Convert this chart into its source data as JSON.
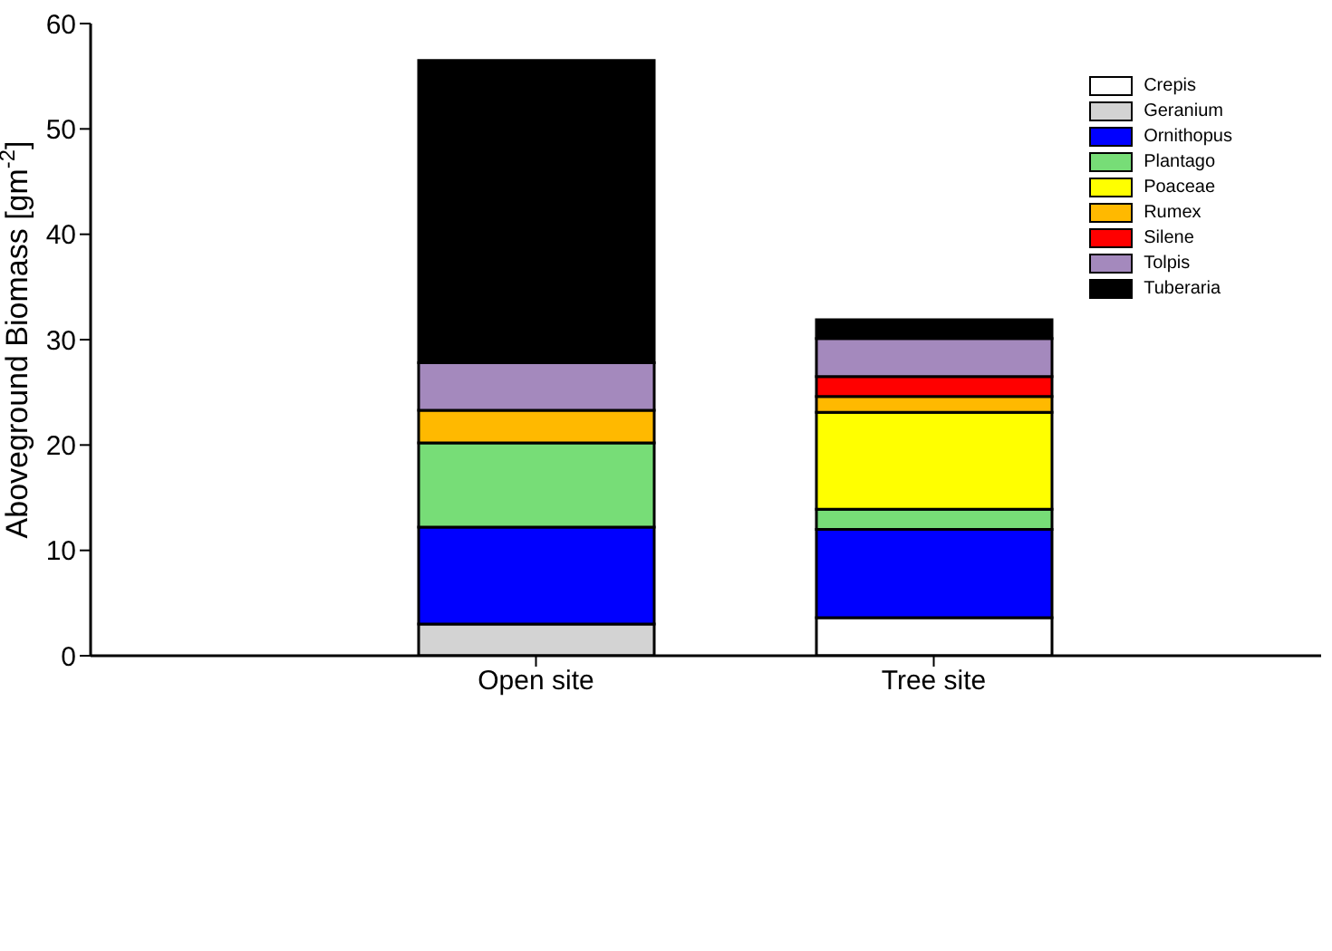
{
  "chart_data": {
    "type": "bar",
    "stacked": true,
    "ylabel": "Aboveground Biomass [gm$^{-2}$]",
    "categories": [
      "Open site",
      "Tree site"
    ],
    "series": [
      {
        "name": "Crepis",
        "color": "#ffffff",
        "values": [
          null,
          3.6
        ]
      },
      {
        "name": "Geranium",
        "color": "#d3d3d3",
        "values": [
          3.0,
          null
        ]
      },
      {
        "name": "Ornithopus",
        "color": "#0000ff",
        "values": [
          9.2,
          8.4
        ]
      },
      {
        "name": "Plantago",
        "color": "#77dd77",
        "values": [
          8.0,
          1.9
        ]
      },
      {
        "name": "Poaceae",
        "color": "#ffff00",
        "values": [
          null,
          9.2
        ]
      },
      {
        "name": "Rumex",
        "color": "#ffb900",
        "values": [
          3.1,
          1.5
        ]
      },
      {
        "name": "Silene",
        "color": "#ff0000",
        "values": [
          null,
          1.9
        ]
      },
      {
        "name": "Tolpis",
        "color": "#a489bd",
        "values": [
          4.5,
          3.6
        ]
      },
      {
        "name": "Tuberaria",
        "color": "#000000",
        "values": [
          28.7,
          1.8
        ]
      }
    ],
    "ylim": [
      0,
      60
    ],
    "yticks": [
      0,
      10,
      20,
      30,
      40,
      50,
      60
    ],
    "legend": "top right"
  }
}
